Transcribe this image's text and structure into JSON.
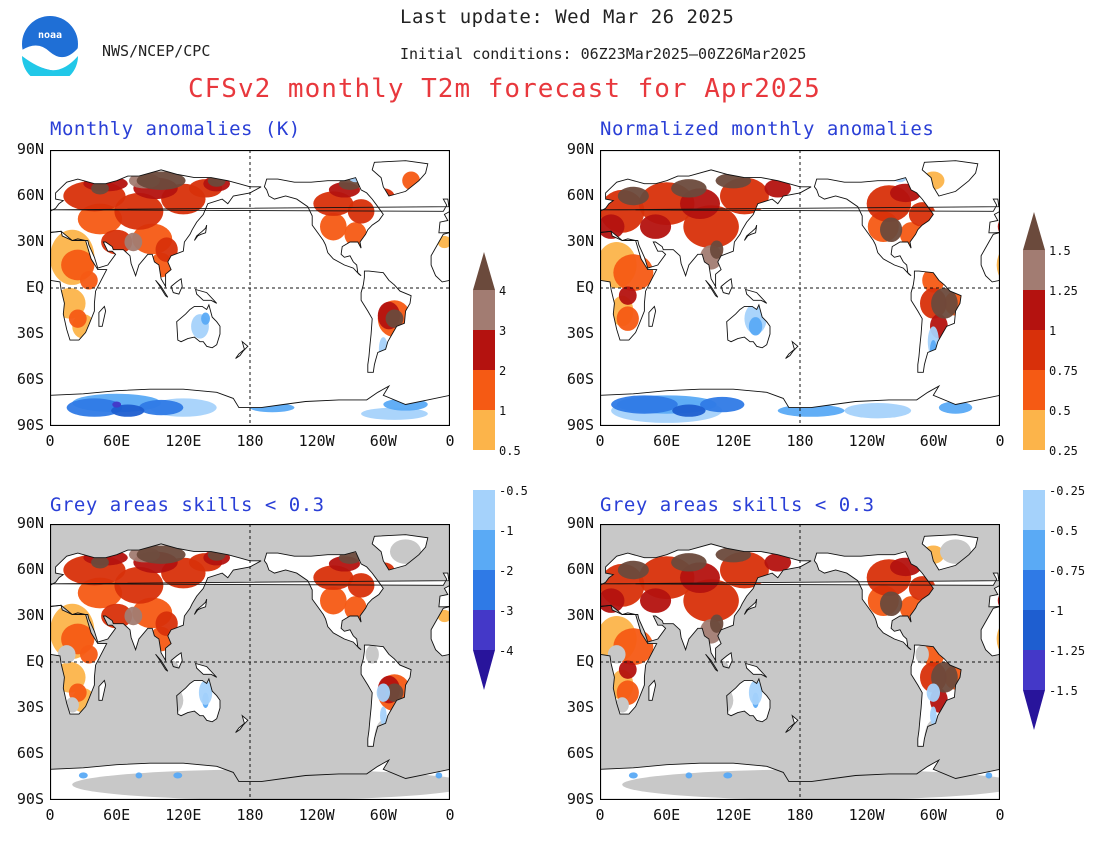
{
  "header": {
    "last_update": "Last update: Wed Mar 26 2025",
    "initial_conditions": "Initial conditions: 06Z23Mar2025—00Z26Mar2025",
    "agency": "NWS/NCEP/CPC",
    "logo_text": "noaa",
    "title": "CFSv2 monthly T2m forecast for Apr2025"
  },
  "panels": {
    "p1": {
      "title": "Monthly anomalies (K)"
    },
    "p2": {
      "title": "Normalized monthly anomalies"
    },
    "p3": {
      "title": "Grey areas skills < 0.3"
    },
    "p4": {
      "title": "Grey areas skills < 0.3"
    }
  },
  "axes": {
    "lat_labels": [
      "90N",
      "60N",
      "30N",
      "EQ",
      "30S",
      "60S",
      "90S"
    ],
    "lon_labels": [
      "0",
      "60E",
      "120E",
      "180",
      "120W",
      "60W",
      "0"
    ]
  },
  "colorbar_left": {
    "labels": [
      "4",
      "3",
      "2",
      "1",
      "0.5",
      "-0.5",
      "-1",
      "-2",
      "-3",
      "-4"
    ]
  },
  "colorbar_right": {
    "labels": [
      "1.5",
      "1.25",
      "1",
      "0.75",
      "0.5",
      "0.25",
      "-0.25",
      "-0.5",
      "-0.75",
      "-1",
      "-1.25",
      "-1.5"
    ]
  },
  "colors": {
    "brown": "#6b4a3c",
    "light_brown": "#a27c72",
    "dark_red": "#b4120f",
    "red": "#d8300a",
    "orange": "#f55a14",
    "light_orange": "#fcb44a",
    "light_blue": "#a5d2fb",
    "blue_1": "#5aaaf5",
    "blue_2": "#2f7ae6",
    "blue_3": "#1e5ed0",
    "indigo": "#4438c8",
    "dark_indigo": "#28149b",
    "title_red": "#e8383d",
    "panel_title_blue": "#2a3fd6",
    "grey_mask": "#c8c8c8"
  }
}
